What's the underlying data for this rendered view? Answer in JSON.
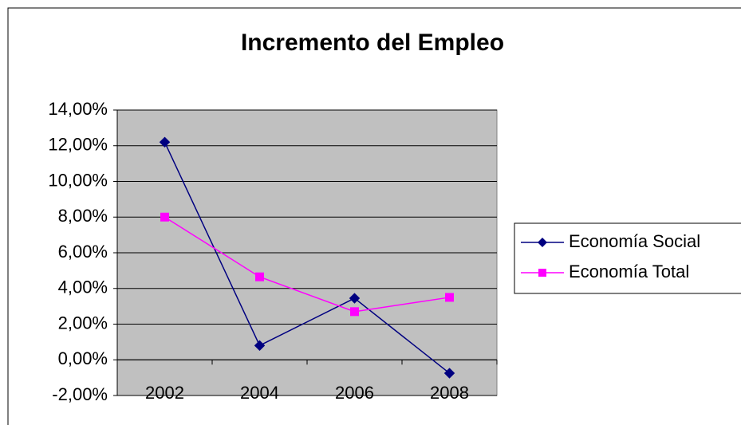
{
  "chart_data": {
    "type": "line",
    "title": "Incremento del Empleo",
    "categories": [
      "2002",
      "2004",
      "2006",
      "2008"
    ],
    "series": [
      {
        "name": "Economía Social",
        "color": "#000080",
        "marker": "diamond",
        "values": [
          12.2,
          0.8,
          3.45,
          -0.75
        ]
      },
      {
        "name": "Economía Total",
        "color": "#ff00ff",
        "marker": "square",
        "values": [
          8.0,
          4.65,
          2.7,
          3.5
        ]
      }
    ],
    "ylim": [
      -2,
      14
    ],
    "yticks": [
      {
        "value": -2,
        "label": "-2,00%"
      },
      {
        "value": 0,
        "label": "0,00%"
      },
      {
        "value": 2,
        "label": "2,00%"
      },
      {
        "value": 4,
        "label": "4,00%"
      },
      {
        "value": 6,
        "label": "6,00%"
      },
      {
        "value": 8,
        "label": "8,00%"
      },
      {
        "value": 10,
        "label": "10,00%"
      },
      {
        "value": 12,
        "label": "12,00%"
      },
      {
        "value": 14,
        "label": "14,00%"
      }
    ],
    "grid": true,
    "legend": "right"
  }
}
